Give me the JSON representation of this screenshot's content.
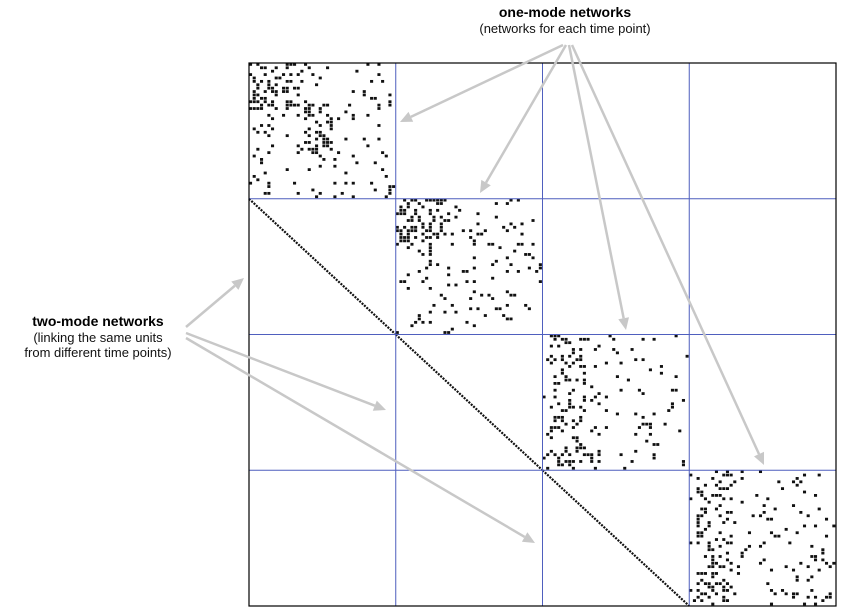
{
  "annotations": {
    "one_mode": {
      "title": "one-mode networks",
      "subtitle": "(networks for each time point)"
    },
    "two_mode": {
      "title": "two-mode networks",
      "subtitle_line1": "(linking the same units",
      "subtitle_line2": "from different time points)"
    }
  },
  "matrix": {
    "time_points": 4,
    "block_size": 40,
    "diagonal_blocks": [
      {
        "time_point": 1,
        "ties_shown": 210
      },
      {
        "time_point": 2,
        "ties_shown": 190
      },
      {
        "time_point": 3,
        "ties_shown": 180
      },
      {
        "time_point": 4,
        "ties_shown": 200
      }
    ],
    "two_mode_identity": true
  },
  "colors": {
    "grid": "#4f5fbe",
    "arrow": "#c8c8c8",
    "cell": "#111111",
    "frame": "#000000"
  }
}
